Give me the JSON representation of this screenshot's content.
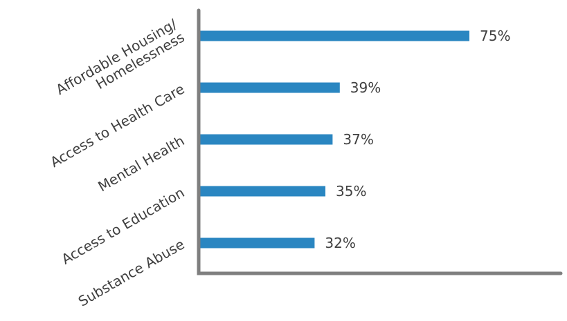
{
  "chart_data": {
    "type": "bar",
    "orientation": "horizontal",
    "categories": [
      [
        "Affordable Housing/",
        "Homelessness"
      ],
      [
        "Access to Health Care"
      ],
      [
        "Mental Health"
      ],
      [
        "Access to Education"
      ],
      [
        "Substance Abuse"
      ]
    ],
    "values": [
      75,
      39,
      37,
      35,
      32
    ],
    "value_labels": [
      "75%",
      "39%",
      "37%",
      "35%",
      "32%"
    ],
    "xlim": [
      0,
      100
    ],
    "grid": false,
    "legend": "none",
    "bar_color": "#2a86c1",
    "axis_color": "#7f7f7f"
  }
}
